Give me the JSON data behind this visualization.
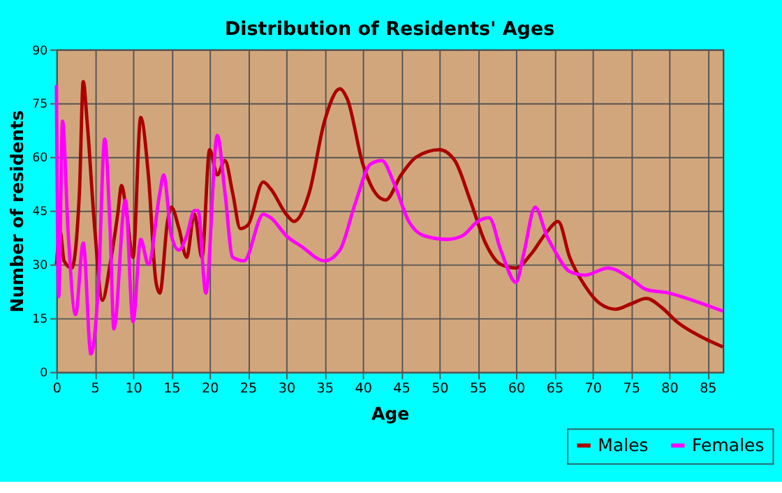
{
  "chart_data": {
    "type": "line",
    "title": "Distribution of Residents' Ages",
    "xlabel": "Age",
    "ylabel": "Number of residents",
    "series": [
      {
        "name": "Males",
        "color": "#aa0000",
        "x": [
          0,
          0.5,
          1,
          2,
          3,
          3.5,
          4,
          5,
          6,
          7,
          8,
          8.5,
          9,
          10,
          11,
          12,
          13,
          13.5,
          14.5,
          15,
          16,
          17,
          18,
          19,
          20,
          21,
          22,
          23,
          24,
          25,
          27,
          28,
          30,
          31,
          33,
          35,
          37,
          38,
          40,
          42,
          43,
          45,
          47,
          50,
          52,
          54,
          56,
          58,
          60,
          62,
          64,
          65.5,
          67,
          69,
          71,
          73,
          75,
          77,
          79,
          81,
          84,
          87
        ],
        "values": [
          30,
          39,
          31,
          29,
          50,
          81,
          70,
          40,
          20,
          30,
          44,
          52,
          47,
          32,
          71,
          55,
          25,
          22,
          42,
          46,
          40,
          32,
          44,
          32,
          62,
          55,
          59,
          50,
          40,
          41,
          53,
          51,
          44,
          42,
          50,
          70,
          79,
          76,
          58,
          49,
          48,
          55,
          60,
          62,
          59,
          48,
          36,
          30,
          29,
          33,
          39,
          42,
          32,
          24,
          19,
          17.5,
          19,
          20.5,
          18,
          14,
          10,
          7
        ]
      },
      {
        "name": "Females",
        "color": "#ff00ff",
        "x": [
          0,
          0.3,
          0.8,
          1.5,
          2.5,
          3.5,
          4.5,
          5.5,
          6.3,
          7,
          7.5,
          9,
          10,
          11,
          12,
          13.5,
          14,
          15,
          16,
          17,
          18,
          18.5,
          19.5,
          21,
          22,
          23,
          24.5,
          27,
          28,
          30,
          32,
          35,
          37,
          39,
          41,
          42.5,
          44,
          46,
          48,
          51,
          53,
          55,
          56.5,
          58,
          60,
          61,
          62.5,
          64,
          65,
          67,
          69,
          72,
          75,
          77,
          80,
          83,
          87
        ],
        "values": [
          80,
          21,
          70,
          40,
          16,
          36,
          5,
          25,
          65,
          40,
          12,
          48,
          14,
          37,
          30,
          50,
          55,
          38,
          34,
          38,
          45,
          45,
          22,
          66,
          50,
          32,
          31,
          44,
          43,
          38,
          35,
          31,
          34,
          47,
          58,
          59,
          53,
          42,
          38,
          37,
          38,
          42,
          43,
          34,
          25,
          33,
          46,
          38,
          34,
          28,
          27,
          29,
          26,
          23,
          22,
          20,
          17
        ]
      }
    ],
    "xlim": [
      0,
      87
    ],
    "xticks": [
      0,
      5,
      10,
      15,
      20,
      25,
      30,
      35,
      40,
      45,
      50,
      55,
      60,
      65,
      70,
      75,
      80,
      85
    ],
    "ylim": [
      0,
      90
    ],
    "yticks": [
      0,
      15,
      30,
      45,
      60,
      75,
      90
    ],
    "grid": true,
    "legend": "bottom right",
    "line_style": "solid"
  }
}
